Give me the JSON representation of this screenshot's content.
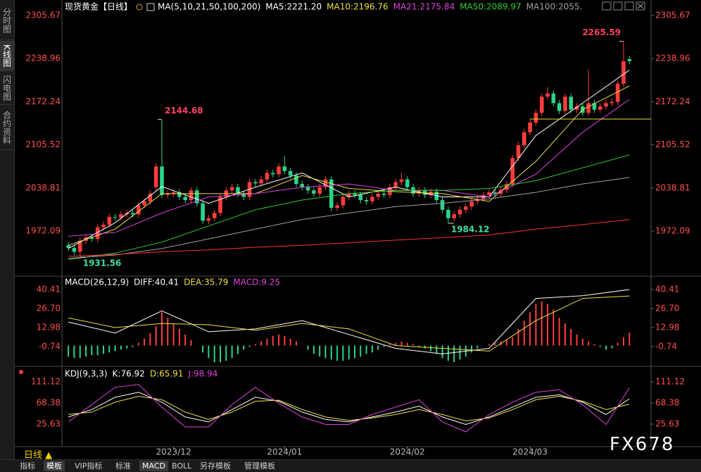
{
  "ui": {
    "sidebar_tabs": [
      "分时图",
      "K线图",
      "闪电图",
      "合约资料"
    ],
    "period": "日线 ▲",
    "watermark": "FX678",
    "bottom_tabs": [
      "指标",
      "模板",
      "VIP指标",
      "标准",
      "MACD",
      "BOLL",
      "另存模板",
      "管理模板"
    ]
  },
  "chart_data": [
    {
      "type": "candlestick",
      "title": "现货黄金【日线】",
      "indicator": "MA(5,10,21,50,100,200)",
      "xlim": [
        -1.1,
        99.7
      ],
      "ylim": [
        1904.5,
        2310
      ],
      "yticks": [
        2305.67,
        2238.96,
        2172.24,
        2105.52,
        2038.81,
        1972.09
      ],
      "up_color": "#ff3c3c",
      "down_color": "#2ad48a",
      "open": [
        1950,
        1946,
        1940,
        1957,
        1962,
        1960,
        1978,
        1982,
        1994,
        1993,
        1998,
        2000,
        1998,
        2012,
        2018,
        2040,
        2072,
        2028,
        2030,
        2032,
        2025,
        2020,
        2035,
        2015,
        1988,
        1992,
        2000,
        2025,
        2035,
        2040,
        2030,
        2025,
        2048,
        2046,
        2052,
        2062,
        2060,
        2072,
        2065,
        2058,
        2045,
        2040,
        2035,
        2030,
        2040,
        2052,
        2008,
        2012,
        2025,
        2030,
        2028,
        2020,
        2018,
        2025,
        2030,
        2028,
        2040,
        2048,
        2052,
        2040,
        2030,
        2035,
        2028,
        2033,
        2020,
        2005,
        1992,
        1998,
        2005,
        2010,
        2018,
        2022,
        2028,
        2032,
        2030,
        2036,
        2045,
        2085,
        2105,
        2125,
        2140,
        2155,
        2180,
        2185,
        2170,
        2158,
        2180,
        2160,
        2165,
        2155,
        2170,
        2160,
        2165,
        2170,
        2172,
        2200,
        2238
      ],
      "high": [
        1955,
        1951,
        1962,
        1967,
        1967,
        1983,
        1987,
        1999,
        1999,
        2003,
        2005,
        2005,
        2017,
        2023,
        2035,
        2077,
        2144.68,
        2035,
        2037,
        2037,
        2030,
        2040,
        2040,
        2020,
        1997,
        2005,
        2030,
        2040,
        2045,
        2045,
        2035,
        2053,
        2053,
        2057,
        2067,
        2067,
        2077,
        2088,
        2070,
        2063,
        2050,
        2045,
        2040,
        2045,
        2057,
        2057,
        2017,
        2030,
        2035,
        2035,
        2033,
        2025,
        2030,
        2035,
        2035,
        2045,
        2053,
        2062,
        2057,
        2045,
        2040,
        2040,
        2038,
        2038,
        2025,
        2010,
        2003,
        2010,
        2015,
        2023,
        2027,
        2033,
        2037,
        2037,
        2041,
        2050,
        2090,
        2110,
        2130,
        2145,
        2160,
        2185,
        2195,
        2190,
        2175,
        2185,
        2185,
        2170,
        2170,
        2222,
        2175,
        2170,
        2175,
        2177,
        2205,
        2265.59,
        2243
      ],
      "low": [
        1941,
        1935,
        1931.56,
        1952,
        1955,
        1955,
        1973,
        1977,
        1988,
        1988,
        1993,
        1993,
        1993,
        2007,
        2013,
        2035,
        2023,
        2023,
        2025,
        2020,
        2015,
        2015,
        2010,
        1983,
        1983,
        1987,
        1995,
        2020,
        2030,
        2025,
        2020,
        2020,
        2041,
        2041,
        2047,
        2055,
        2055,
        2060,
        2053,
        2040,
        2035,
        2030,
        2025,
        2025,
        2035,
        2003,
        2003,
        2007,
        2020,
        2023,
        2015,
        2013,
        2013,
        2020,
        2023,
        2023,
        2035,
        2043,
        2035,
        2025,
        2025,
        2023,
        2023,
        2015,
        2000,
        1984.12,
        1987,
        1993,
        2000,
        2005,
        2013,
        2017,
        2023,
        2025,
        2025,
        2031,
        2040,
        2080,
        2100,
        2120,
        2135,
        2150,
        2175,
        2165,
        2153,
        2153,
        2155,
        2155,
        2150,
        2150,
        2155,
        2155,
        2160,
        2165,
        2167,
        2195,
        2230
      ],
      "close": [
        1946,
        1940,
        1957,
        1962,
        1960,
        1978,
        1982,
        1994,
        1993,
        1998,
        2000,
        1998,
        2012,
        2018,
        2030,
        2072,
        2028,
        2030,
        2032,
        2025,
        2020,
        2035,
        2015,
        1988,
        1992,
        2000,
        2025,
        2035,
        2040,
        2030,
        2025,
        2048,
        2046,
        2052,
        2062,
        2060,
        2072,
        2065,
        2058,
        2045,
        2040,
        2035,
        2030,
        2040,
        2052,
        2008,
        2012,
        2025,
        2030,
        2028,
        2020,
        2018,
        2025,
        2030,
        2028,
        2040,
        2048,
        2052,
        2040,
        2030,
        2035,
        2028,
        2033,
        2020,
        2005,
        1992,
        1998,
        2005,
        2010,
        2018,
        2022,
        2028,
        2032,
        2030,
        2036,
        2045,
        2085,
        2105,
        2125,
        2140,
        2155,
        2180,
        2185,
        2170,
        2158,
        2180,
        2160,
        2165,
        2155,
        2170,
        2160,
        2165,
        2170,
        2172,
        2200,
        2235,
        2235
      ],
      "ma_x": [
        0,
        8,
        16,
        24,
        32,
        40,
        48,
        56,
        64,
        72,
        80,
        88,
        96
      ],
      "series": [
        {
          "name": "MA5:2221.20",
          "color": "#ffffff",
          "values": [
            1945,
            1985,
            2041,
            2015,
            2040,
            2062,
            2025,
            2040,
            2025,
            2025,
            2120,
            2170,
            2221.2
          ]
        },
        {
          "name": "MA10:2196.76",
          "color": "#f0e040",
          "values": [
            1950,
            1975,
            2030,
            2030,
            2030,
            2058,
            2038,
            2033,
            2030,
            2018,
            2080,
            2160,
            2196.76
          ]
        },
        {
          "name": "MA21:2175.84",
          "color": "#e040e0",
          "values": [
            1964,
            1970,
            2000,
            2025,
            2030,
            2040,
            2045,
            2035,
            2035,
            2025,
            2060,
            2125,
            2175.84
          ]
        },
        {
          "name": "MA50:2089.97",
          "color": "#30d030",
          "values": [
            1928,
            1938,
            1955,
            1980,
            2005,
            2020,
            2030,
            2035,
            2035,
            2038,
            2050,
            2070,
            2089.97
          ]
        },
        {
          "name": "MA100:2055.",
          "color": "#a0a0a0",
          "values": [
            1930,
            1935,
            1945,
            1960,
            1975,
            1990,
            2000,
            2010,
            2015,
            2022,
            2032,
            2045,
            2055
          ]
        },
        {
          "color": "#ff3030",
          "values": [
            1933,
            1936,
            1940,
            1943,
            1947,
            1950,
            1954,
            1958,
            1962,
            1966,
            1975,
            1982,
            1990
          ]
        }
      ],
      "annotations": [
        {
          "x": 95,
          "value": 2265.59,
          "color": "#ff4060"
        },
        {
          "x": 16,
          "value": 2144.68,
          "color": "#ff4060"
        },
        {
          "x": 65,
          "value": 1984.12,
          "color": "#40e0a0"
        },
        {
          "x": 2,
          "value": 1931.56,
          "color": "#40e0a0"
        }
      ],
      "hline": {
        "value": 2145.4,
        "from": 79,
        "color": "#f0e040"
      }
    },
    {
      "type": "macd",
      "title": "MACD(26,12,9)",
      "ylim": [
        -13.95,
        48.55
      ],
      "yticks": [
        40.41,
        {
          "value": 26.7,
          "label": "26.70"
        },
        12.98,
        -0.74
      ],
      "histogram": {
        "name": "MACD:9.25",
        "color": "#e040e0",
        "up_color": "#ff3c3c",
        "down_color": "#2ad48a",
        "values": [
          -8,
          -9,
          -9,
          -8,
          -7,
          -7,
          -6,
          -5,
          -4,
          -3,
          -2,
          -1,
          2,
          5,
          9,
          14,
          24,
          20,
          16,
          12,
          8,
          4,
          0,
          -5,
          -9,
          -12,
          -12,
          -11,
          -9,
          -6,
          -3,
          -1,
          1,
          3,
          5,
          7,
          8,
          7,
          5,
          3,
          0,
          -3,
          -6,
          -8,
          -9,
          -10,
          -11,
          -11,
          -10,
          -9,
          -8,
          -6,
          -5,
          -3,
          -1,
          1,
          2,
          3,
          2,
          1,
          -1,
          -2,
          -4,
          -6,
          -9,
          -11,
          -12,
          -10,
          -8,
          -5,
          -2,
          0,
          1,
          2,
          3,
          4,
          6,
          12,
          18,
          24,
          30,
          32,
          30,
          26,
          20,
          16,
          12,
          8,
          5,
          3,
          1,
          -1,
          -3,
          -2,
          2,
          6,
          9.25
        ]
      },
      "x": [
        0,
        8,
        16,
        24,
        32,
        40,
        48,
        56,
        64,
        72,
        80,
        88,
        96
      ],
      "series": [
        {
          "name": "DIFF:40.41",
          "color": "#ffffff",
          "values": [
            17,
            9,
            25,
            10,
            12,
            18,
            8,
            -2,
            -6,
            -2,
            34,
            36,
            40.41
          ]
        },
        {
          "name": "DEA:35.79",
          "color": "#f0e040",
          "values": [
            20,
            13,
            16,
            15,
            11,
            16,
            12,
            0,
            -2,
            -4,
            18,
            34,
            35.79
          ]
        }
      ]
    },
    {
      "type": "kdj",
      "title": "KDJ(9,3,3)",
      "ylim": [
        -17.1,
        136.8
      ],
      "yticks": [
        111.12,
        68.38,
        25.63
      ],
      "xticks": [
        {
          "value": 18,
          "label": "2023/12"
        },
        {
          "value": 37,
          "label": "2024/01"
        },
        {
          "value": 58,
          "label": "2024/02"
        },
        {
          "value": 79,
          "label": "2024/03"
        }
      ],
      "x": [
        0,
        4,
        8,
        12,
        16,
        20,
        24,
        28,
        32,
        36,
        40,
        44,
        48,
        52,
        56,
        60,
        64,
        68,
        72,
        76,
        80,
        84,
        88,
        92,
        96
      ],
      "series": [
        {
          "name": "K:76.92",
          "color": "#ffffff",
          "values": [
            40,
            55,
            80,
            90,
            70,
            40,
            30,
            55,
            80,
            72,
            50,
            35,
            30,
            40,
            50,
            62,
            40,
            25,
            40,
            60,
            80,
            85,
            70,
            45,
            76.92
          ]
        },
        {
          "name": "D:65.91",
          "color": "#f0e040",
          "values": [
            45,
            50,
            70,
            82,
            75,
            50,
            35,
            50,
            72,
            74,
            55,
            40,
            33,
            38,
            45,
            55,
            45,
            32,
            38,
            55,
            75,
            82,
            72,
            55,
            65.91
          ]
        },
        {
          "name": "J:98.94",
          "color": "#e040e0",
          "values": [
            30,
            65,
            100,
            106,
            60,
            20,
            20,
            65,
            100,
            68,
            40,
            25,
            25,
            45,
            60,
            75,
            30,
            10,
            45,
            70,
            90,
            95,
            65,
            25,
            98.94
          ]
        }
      ]
    }
  ]
}
